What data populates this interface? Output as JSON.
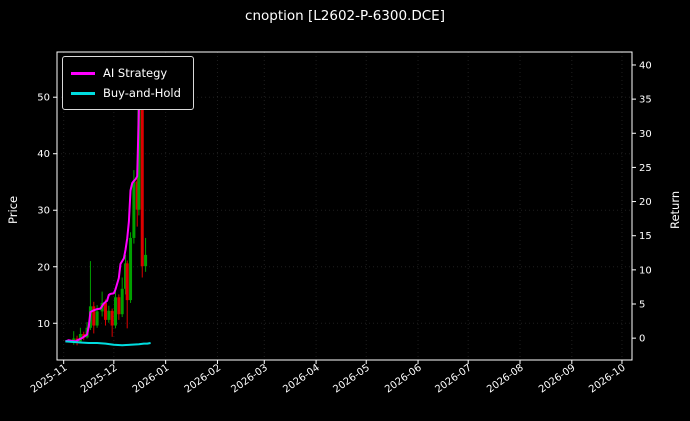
{
  "title": "cnoption [L2602-P-6300.DCE]",
  "chart_data": {
    "type": "line",
    "title": "cnoption [L2602-P-6300.DCE]",
    "xlabel": "",
    "ylabel_left": "Price",
    "ylabel_right": "Return",
    "grid": true,
    "legend_position": "upper left",
    "x_domain_days": [
      -4,
      340
    ],
    "x_ticks": [
      {
        "label": "2025-11",
        "day": 0
      },
      {
        "label": "2025-12",
        "day": 30
      },
      {
        "label": "2026-01",
        "day": 61
      },
      {
        "label": "2026-02",
        "day": 92
      },
      {
        "label": "2026-03",
        "day": 120
      },
      {
        "label": "2026-04",
        "day": 151
      },
      {
        "label": "2026-05",
        "day": 181
      },
      {
        "label": "2026-06",
        "day": 212
      },
      {
        "label": "2026-07",
        "day": 242
      },
      {
        "label": "2026-08",
        "day": 273
      },
      {
        "label": "2026-09",
        "day": 304
      },
      {
        "label": "2026-10",
        "day": 334
      }
    ],
    "price_ylim": [
      3.5,
      58
    ],
    "price_ticks": [
      10,
      20,
      30,
      40,
      50
    ],
    "return_ylim": [
      -3.2,
      41.9
    ],
    "return_ticks": [
      0,
      5,
      10,
      15,
      20,
      25,
      30,
      35,
      40
    ],
    "legend": [
      {
        "label": "AI Strategy",
        "color": "#ff00ff"
      },
      {
        "label": "Buy-and-Hold",
        "color": "#00dde0"
      }
    ],
    "series": [
      {
        "name": "AI Strategy",
        "axis": "price",
        "color": "#ff00ff",
        "x_days": [
          1,
          3,
          5,
          7,
          9,
          11,
          13,
          14,
          15,
          16,
          18,
          20,
          22,
          24,
          26,
          27,
          28,
          30,
          31,
          33,
          34,
          35,
          36,
          37,
          38,
          39,
          40,
          41,
          42,
          43,
          44,
          45,
          46
        ],
        "values": [
          6.8,
          7.0,
          6.9,
          6.8,
          7.1,
          7.4,
          7.8,
          8.0,
          9.5,
          12.0,
          12.3,
          12.5,
          12.6,
          13.5,
          14.0,
          15.0,
          15.2,
          15.3,
          16.0,
          18.0,
          20.5,
          21.0,
          21.5,
          23.0,
          25.0,
          28.0,
          33.5,
          34.8,
          35.2,
          35.5,
          36.0,
          48.0,
          55.0
        ]
      },
      {
        "name": "Buy-and-Hold",
        "axis": "price",
        "color": "#00dde0",
        "x_days": [
          1,
          5,
          10,
          15,
          20,
          25,
          30,
          35,
          40,
          45,
          48,
          50,
          52
        ],
        "values": [
          6.8,
          6.7,
          6.6,
          6.5,
          6.5,
          6.4,
          6.2,
          6.1,
          6.2,
          6.3,
          6.4,
          6.4,
          6.5
        ]
      }
    ],
    "candles": [
      {
        "d": 6,
        "o": 6.6,
        "c": 7.3,
        "h": 8.6,
        "l": 6.2,
        "dir": "up"
      },
      {
        "d": 8,
        "o": 7.3,
        "c": 6.7,
        "h": 7.8,
        "l": 6.1,
        "dir": "down"
      },
      {
        "d": 10,
        "o": 6.8,
        "c": 8.1,
        "h": 9.2,
        "l": 6.5,
        "dir": "up"
      },
      {
        "d": 12,
        "o": 8.1,
        "c": 7.5,
        "h": 8.5,
        "l": 7.0,
        "dir": "down"
      },
      {
        "d": 14,
        "o": 7.5,
        "c": 9.2,
        "h": 10.2,
        "l": 7.3,
        "dir": "up"
      },
      {
        "d": 16,
        "o": 9.2,
        "c": 13.0,
        "h": 21.0,
        "l": 8.8,
        "dir": "up"
      },
      {
        "d": 18,
        "o": 13.0,
        "c": 9.6,
        "h": 13.8,
        "l": 8.2,
        "dir": "down"
      },
      {
        "d": 20,
        "o": 9.6,
        "c": 12.1,
        "h": 13.2,
        "l": 9.2,
        "dir": "up"
      },
      {
        "d": 23,
        "o": 12.1,
        "c": 13.6,
        "h": 15.6,
        "l": 11.2,
        "dir": "up"
      },
      {
        "d": 25,
        "o": 13.6,
        "c": 10.6,
        "h": 14.2,
        "l": 9.6,
        "dir": "down"
      },
      {
        "d": 27,
        "o": 10.6,
        "c": 12.2,
        "h": 13.1,
        "l": 10.1,
        "dir": "up"
      },
      {
        "d": 29,
        "o": 12.2,
        "c": 9.6,
        "h": 12.6,
        "l": 7.6,
        "dir": "down"
      },
      {
        "d": 31,
        "o": 9.6,
        "c": 14.6,
        "h": 16.1,
        "l": 9.1,
        "dir": "up"
      },
      {
        "d": 33,
        "o": 14.6,
        "c": 11.6,
        "h": 15.1,
        "l": 10.6,
        "dir": "down"
      },
      {
        "d": 35,
        "o": 11.6,
        "c": 16.1,
        "h": 18.1,
        "l": 11.1,
        "dir": "up"
      },
      {
        "d": 37,
        "o": 16.1,
        "c": 20.6,
        "h": 22.1,
        "l": 15.1,
        "dir": "up"
      },
      {
        "d": 38,
        "o": 20.6,
        "c": 14.1,
        "h": 21.1,
        "l": 9.1,
        "dir": "down"
      },
      {
        "d": 40,
        "o": 14.1,
        "c": 25.1,
        "h": 26.1,
        "l": 13.6,
        "dir": "up"
      },
      {
        "d": 42,
        "o": 25.1,
        "c": 35.1,
        "h": 37.1,
        "l": 24.1,
        "dir": "up"
      },
      {
        "d": 44,
        "o": 35.1,
        "c": 30.1,
        "h": 36.1,
        "l": 27.1,
        "dir": "down"
      },
      {
        "d": 45,
        "o": 30.1,
        "c": 55.0,
        "h": 57.0,
        "l": 29.1,
        "dir": "up"
      },
      {
        "d": 47,
        "o": 55.0,
        "c": 20.1,
        "h": 57.0,
        "l": 18.1,
        "dir": "down"
      },
      {
        "d": 49,
        "o": 20.1,
        "c": 22.1,
        "h": 25.1,
        "l": 19.1,
        "dir": "up"
      }
    ],
    "colors": {
      "up": "#00a000",
      "down": "#dd0000",
      "background": "#000000",
      "text": "#ffffff",
      "spine": "#ffffff",
      "grid": "rgba(255,255,255,0.12)"
    }
  }
}
